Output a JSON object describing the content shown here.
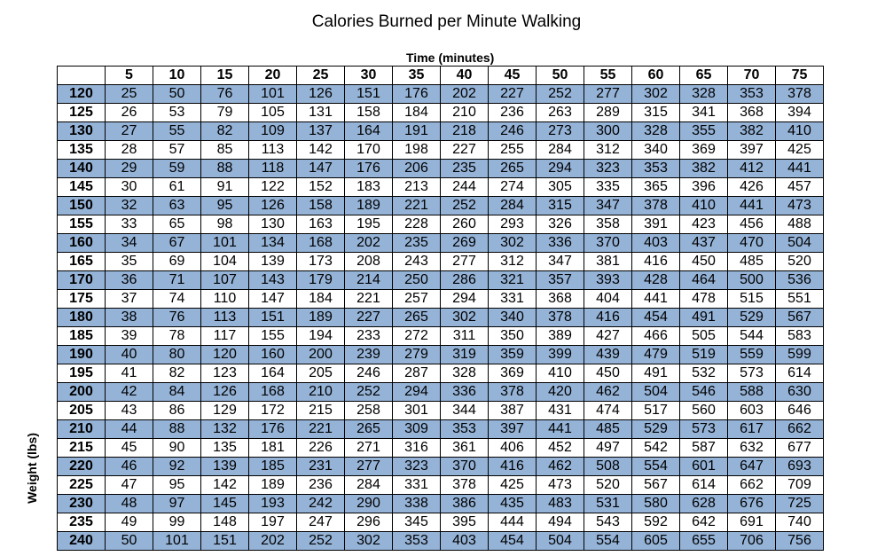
{
  "chart_data": {
    "type": "table",
    "title": "Calories Burned per Minute Walking",
    "col_axis_label": "Time (minutes)",
    "row_axis_label": "Weight (lbs)",
    "columns": [
      "5",
      "10",
      "15",
      "20",
      "25",
      "30",
      "35",
      "40",
      "45",
      "50",
      "55",
      "60",
      "65",
      "70",
      "75"
    ],
    "rows": [
      {
        "weight": "120",
        "values": [
          "25",
          "50",
          "76",
          "101",
          "126",
          "151",
          "176",
          "202",
          "227",
          "252",
          "277",
          "302",
          "328",
          "353",
          "378"
        ]
      },
      {
        "weight": "125",
        "values": [
          "26",
          "53",
          "79",
          "105",
          "131",
          "158",
          "184",
          "210",
          "236",
          "263",
          "289",
          "315",
          "341",
          "368",
          "394"
        ]
      },
      {
        "weight": "130",
        "values": [
          "27",
          "55",
          "82",
          "109",
          "137",
          "164",
          "191",
          "218",
          "246",
          "273",
          "300",
          "328",
          "355",
          "382",
          "410"
        ]
      },
      {
        "weight": "135",
        "values": [
          "28",
          "57",
          "85",
          "113",
          "142",
          "170",
          "198",
          "227",
          "255",
          "284",
          "312",
          "340",
          "369",
          "397",
          "425"
        ]
      },
      {
        "weight": "140",
        "values": [
          "29",
          "59",
          "88",
          "118",
          "147",
          "176",
          "206",
          "235",
          "265",
          "294",
          "323",
          "353",
          "382",
          "412",
          "441"
        ]
      },
      {
        "weight": "145",
        "values": [
          "30",
          "61",
          "91",
          "122",
          "152",
          "183",
          "213",
          "244",
          "274",
          "305",
          "335",
          "365",
          "396",
          "426",
          "457"
        ]
      },
      {
        "weight": "150",
        "values": [
          "32",
          "63",
          "95",
          "126",
          "158",
          "189",
          "221",
          "252",
          "284",
          "315",
          "347",
          "378",
          "410",
          "441",
          "473"
        ]
      },
      {
        "weight": "155",
        "values": [
          "33",
          "65",
          "98",
          "130",
          "163",
          "195",
          "228",
          "260",
          "293",
          "326",
          "358",
          "391",
          "423",
          "456",
          "488"
        ]
      },
      {
        "weight": "160",
        "values": [
          "34",
          "67",
          "101",
          "134",
          "168",
          "202",
          "235",
          "269",
          "302",
          "336",
          "370",
          "403",
          "437",
          "470",
          "504"
        ]
      },
      {
        "weight": "165",
        "values": [
          "35",
          "69",
          "104",
          "139",
          "173",
          "208",
          "243",
          "277",
          "312",
          "347",
          "381",
          "416",
          "450",
          "485",
          "520"
        ]
      },
      {
        "weight": "170",
        "values": [
          "36",
          "71",
          "107",
          "143",
          "179",
          "214",
          "250",
          "286",
          "321",
          "357",
          "393",
          "428",
          "464",
          "500",
          "536"
        ]
      },
      {
        "weight": "175",
        "values": [
          "37",
          "74",
          "110",
          "147",
          "184",
          "221",
          "257",
          "294",
          "331",
          "368",
          "404",
          "441",
          "478",
          "515",
          "551"
        ]
      },
      {
        "weight": "180",
        "values": [
          "38",
          "76",
          "113",
          "151",
          "189",
          "227",
          "265",
          "302",
          "340",
          "378",
          "416",
          "454",
          "491",
          "529",
          "567"
        ]
      },
      {
        "weight": "185",
        "values": [
          "39",
          "78",
          "117",
          "155",
          "194",
          "233",
          "272",
          "311",
          "350",
          "389",
          "427",
          "466",
          "505",
          "544",
          "583"
        ]
      },
      {
        "weight": "190",
        "values": [
          "40",
          "80",
          "120",
          "160",
          "200",
          "239",
          "279",
          "319",
          "359",
          "399",
          "439",
          "479",
          "519",
          "559",
          "599"
        ]
      },
      {
        "weight": "195",
        "values": [
          "41",
          "82",
          "123",
          "164",
          "205",
          "246",
          "287",
          "328",
          "369",
          "410",
          "450",
          "491",
          "532",
          "573",
          "614"
        ]
      },
      {
        "weight": "200",
        "values": [
          "42",
          "84",
          "126",
          "168",
          "210",
          "252",
          "294",
          "336",
          "378",
          "420",
          "462",
          "504",
          "546",
          "588",
          "630"
        ]
      },
      {
        "weight": "205",
        "values": [
          "43",
          "86",
          "129",
          "172",
          "215",
          "258",
          "301",
          "344",
          "387",
          "431",
          "474",
          "517",
          "560",
          "603",
          "646"
        ]
      },
      {
        "weight": "210",
        "values": [
          "44",
          "88",
          "132",
          "176",
          "221",
          "265",
          "309",
          "353",
          "397",
          "441",
          "485",
          "529",
          "573",
          "617",
          "662"
        ]
      },
      {
        "weight": "215",
        "values": [
          "45",
          "90",
          "135",
          "181",
          "226",
          "271",
          "316",
          "361",
          "406",
          "452",
          "497",
          "542",
          "587",
          "632",
          "677"
        ]
      },
      {
        "weight": "220",
        "values": [
          "46",
          "92",
          "139",
          "185",
          "231",
          "277",
          "323",
          "370",
          "416",
          "462",
          "508",
          "554",
          "601",
          "647",
          "693"
        ]
      },
      {
        "weight": "225",
        "values": [
          "47",
          "95",
          "142",
          "189",
          "236",
          "284",
          "331",
          "378",
          "425",
          "473",
          "520",
          "567",
          "614",
          "662",
          "709"
        ]
      },
      {
        "weight": "230",
        "values": [
          "48",
          "97",
          "145",
          "193",
          "242",
          "290",
          "338",
          "386",
          "435",
          "483",
          "531",
          "580",
          "628",
          "676",
          "725"
        ]
      },
      {
        "weight": "235",
        "values": [
          "49",
          "99",
          "148",
          "197",
          "247",
          "296",
          "345",
          "395",
          "444",
          "494",
          "543",
          "592",
          "642",
          "691",
          "740"
        ]
      },
      {
        "weight": "240",
        "values": [
          "50",
          "101",
          "151",
          "202",
          "252",
          "302",
          "353",
          "403",
          "454",
          "504",
          "554",
          "605",
          "655",
          "706",
          "756"
        ]
      }
    ],
    "stripe_color": "#95b3d7",
    "stripe_pattern": "alternating rows, starting with the first data row shaded"
  }
}
